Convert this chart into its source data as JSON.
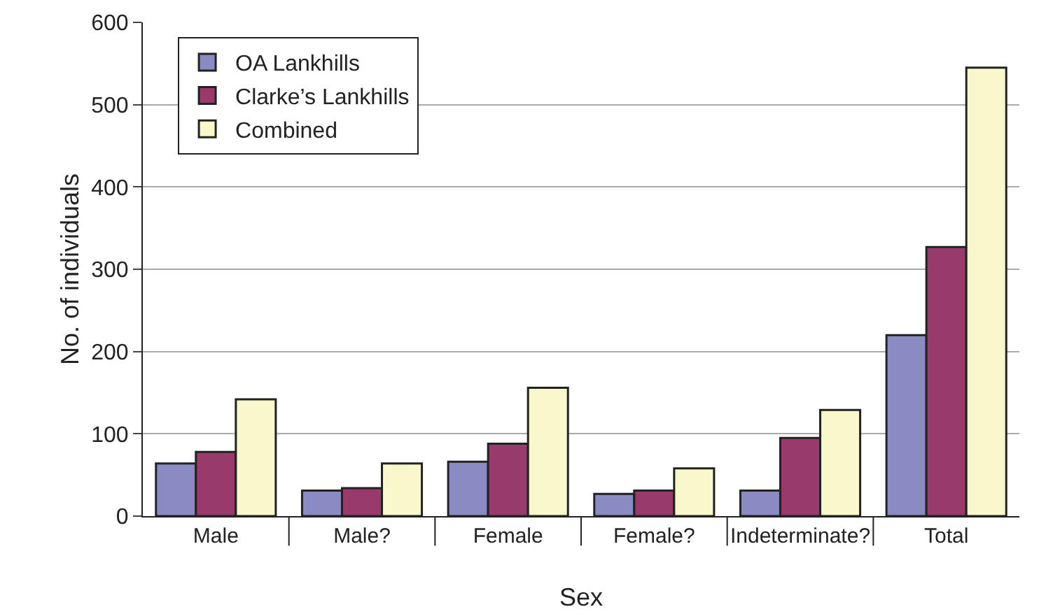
{
  "chart_data": {
    "type": "bar",
    "xlabel": "Sex",
    "ylabel": "No. of individuals",
    "categories": [
      "Male",
      "Male?",
      "Female",
      "Female?",
      "Indeterminate?",
      "Total"
    ],
    "series": [
      {
        "name": "OA Lankhills",
        "color": "#8b8bc4",
        "values": [
          64,
          31,
          66,
          27,
          31,
          220
        ]
      },
      {
        "name": "Clarke’s Lankhills",
        "color": "#993a6c",
        "values": [
          78,
          34,
          88,
          31,
          95,
          327
        ]
      },
      {
        "name": "Combined",
        "color": "#f8f8cc",
        "values": [
          142,
          64,
          156,
          58,
          129,
          545
        ]
      }
    ],
    "ylim": [
      0,
      600
    ],
    "yticks": [
      0,
      100,
      200,
      300,
      400,
      500,
      600
    ],
    "grid": "y",
    "legend": "top left"
  }
}
